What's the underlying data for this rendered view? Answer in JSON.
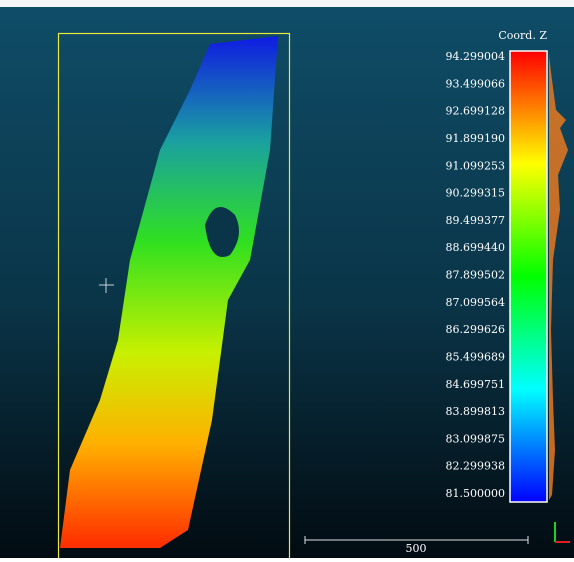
{
  "color_scale": {
    "title": "Coord. Z",
    "labels": [
      "94.299004",
      "93.499066",
      "92.699128",
      "91.899190",
      "91.099253",
      "90.299315",
      "89.499377",
      "88.699440",
      "87.899502",
      "87.099564",
      "86.299626",
      "85.499689",
      "84.699751",
      "83.899813",
      "83.099875",
      "82.299938",
      "81.500000"
    ]
  },
  "scale_bar": {
    "label": "500"
  }
}
